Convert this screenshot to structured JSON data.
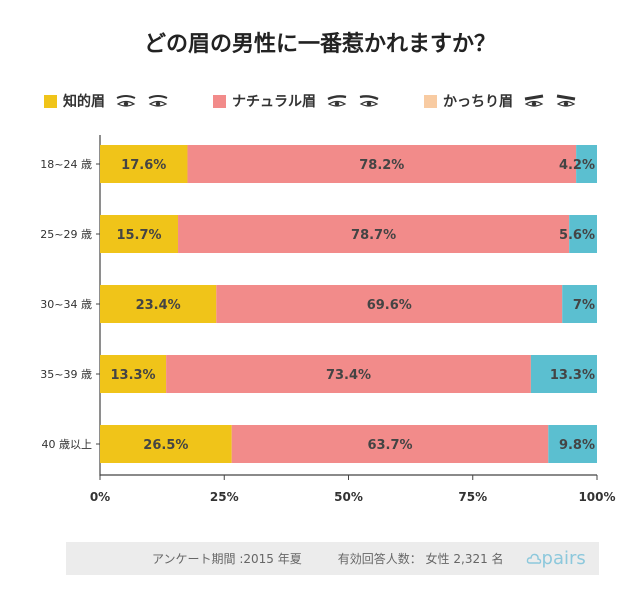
{
  "title": "どの眉の男性に一番惹かれますか？",
  "legend": [
    {
      "label": "知的眉",
      "color": "#f0c419"
    },
    {
      "label": "ナチュラル眉",
      "color": "#f28b8a"
    },
    {
      "label": "かっちり眉",
      "color": "#f8cba2"
    }
  ],
  "footer": {
    "period": "アンケート期間 :2015 年夏",
    "respondents": "有効回答人数： 女性 2,321 名",
    "brand": "pairs"
  },
  "chart_data": {
    "type": "bar",
    "orientation": "horizontal",
    "stacked": true,
    "categories": [
      "18~24 歳",
      "25~29 歳",
      "30~34 歳",
      "35~39 歳",
      "40 歳以上"
    ],
    "series": [
      {
        "name": "知的眉",
        "color": "#f0c419",
        "values": [
          17.6,
          15.7,
          23.4,
          13.3,
          26.5
        ],
        "labels": [
          "17.6%",
          "15.7%",
          "23.4%",
          "13.3%",
          "26.5%"
        ]
      },
      {
        "name": "ナチュラル眉",
        "color": "#f28b8a",
        "values": [
          78.2,
          78.7,
          69.6,
          73.4,
          63.7
        ],
        "labels": [
          "78.2%",
          "78.7%",
          "69.6%",
          "73.4%",
          "63.7%"
        ]
      },
      {
        "name": "かっちり眉",
        "color": "#5bbfd0",
        "values": [
          4.2,
          5.6,
          7,
          13.3,
          9.8
        ],
        "labels": [
          "4.2%",
          "5.6%",
          "7%",
          "13.3%",
          "9.8%"
        ]
      }
    ],
    "xlim": [
      0,
      100
    ],
    "xticks": [
      "0%",
      "25%",
      "50%",
      "75%",
      "100%"
    ],
    "grid": false
  }
}
